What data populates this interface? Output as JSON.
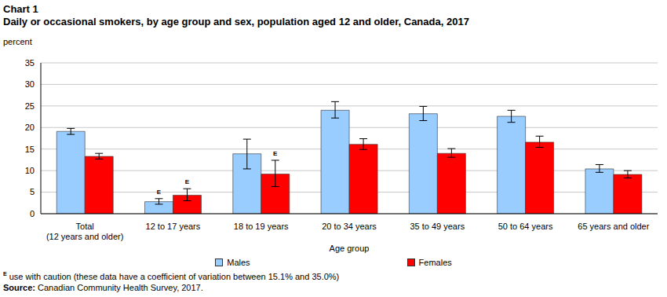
{
  "chart_data": {
    "type": "bar",
    "title": "Chart 1",
    "subtitle": "Daily or occasional smokers, by age group and sex, population aged 12 and older, Canada, 2017",
    "y_label": "percent",
    "x_label": "Age group",
    "categories": [
      "Total\n(12 years and older)",
      "12 to 17 years",
      "18 to 19 years",
      "20 to 34 years",
      "35 to 49 years",
      "50 to 64 years",
      "65 years and older"
    ],
    "series": [
      {
        "name": "Males",
        "color": "#99ccff",
        "values": [
          19.1,
          2.8,
          13.9,
          24.0,
          23.2,
          22.6,
          10.4
        ],
        "ci_low": [
          18.4,
          2.2,
          10.4,
          22.2,
          21.6,
          21.2,
          9.6
        ],
        "ci_high": [
          19.8,
          3.5,
          17.3,
          26.0,
          24.9,
          24.0,
          11.4
        ],
        "flags": [
          null,
          "E",
          null,
          null,
          null,
          null,
          null
        ]
      },
      {
        "name": "Females",
        "color": "#ff0000",
        "values": [
          13.3,
          4.3,
          9.2,
          16.1,
          14.0,
          16.6,
          9.1
        ],
        "ci_low": [
          12.7,
          3.0,
          6.3,
          14.9,
          13.1,
          15.4,
          8.3
        ],
        "ci_high": [
          14.0,
          5.8,
          12.4,
          17.4,
          15.1,
          18.0,
          10.0
        ],
        "flags": [
          null,
          "E",
          "E",
          null,
          null,
          null,
          null
        ]
      }
    ],
    "ylim": [
      0,
      35
    ],
    "yticks": [
      0,
      5,
      10,
      15,
      20,
      25,
      30,
      35
    ],
    "grid": true,
    "legend": "bottom",
    "footnote": {
      "symbol": "E",
      "text": "use with caution (these data have a coefficient of variation between 15.1% and 35.0%)"
    },
    "source": {
      "label": "Source:",
      "text": "Canadian Community Health Survey, 2017."
    }
  }
}
